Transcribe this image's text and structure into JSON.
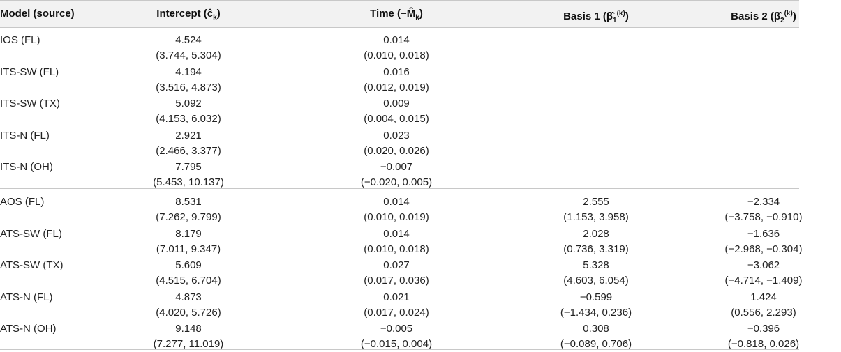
{
  "headers": {
    "model": "Model (source)",
    "intercept": "Intercept (ĉ",
    "intercept_sub": "k",
    "time": "Time (−M̂",
    "time_sub": "k",
    "basis1": "Basis 1 (β̂",
    "basis1_sub": "1",
    "basis1_sup": "(k)",
    "basis2": "Basis 2 (β̂",
    "basis2_sub": "2",
    "basis2_sup": "(k)",
    "close": ")"
  },
  "group1": [
    {
      "model": "IOS (FL)",
      "intercept": "4.524",
      "intercept_ci": "(3.744, 5.304)",
      "time": "0.014",
      "time_ci": "(0.010, 0.018)"
    },
    {
      "model": "ITS-SW (FL)",
      "intercept": "4.194",
      "intercept_ci": "(3.516, 4.873)",
      "time": "0.016",
      "time_ci": "(0.012, 0.019)"
    },
    {
      "model": "ITS-SW (TX)",
      "intercept": "5.092",
      "intercept_ci": "(4.153, 6.032)",
      "time": "0.009",
      "time_ci": "(0.004, 0.015)"
    },
    {
      "model": "ITS-N (FL)",
      "intercept": "2.921",
      "intercept_ci": "(2.466, 3.377)",
      "time": "0.023",
      "time_ci": "(0.020, 0.026)"
    },
    {
      "model": "ITS-N (OH)",
      "intercept": "7.795",
      "intercept_ci": "(5.453, 10.137)",
      "time": "−0.007",
      "time_ci": "(−0.020, 0.005)"
    }
  ],
  "group2": [
    {
      "model": "AOS (FL)",
      "intercept": "8.531",
      "intercept_ci": "(7.262, 9.799)",
      "time": "0.014",
      "time_ci": "(0.010, 0.019)",
      "basis1": "2.555",
      "basis1_ci": "(1.153, 3.958)",
      "basis2": "−2.334",
      "basis2_ci": "(−3.758, −0.910)"
    },
    {
      "model": "ATS-SW (FL)",
      "intercept": "8.179",
      "intercept_ci": "(7.011, 9.347)",
      "time": "0.014",
      "time_ci": "(0.010, 0.018)",
      "basis1": "2.028",
      "basis1_ci": "(0.736, 3.319)",
      "basis2": "−1.636",
      "basis2_ci": "(−2.968, −0.304)"
    },
    {
      "model": "ATS-SW (TX)",
      "intercept": "5.609",
      "intercept_ci": "(4.515, 6.704)",
      "time": "0.027",
      "time_ci": "(0.017, 0.036)",
      "basis1": "5.328",
      "basis1_ci": "(4.603, 6.054)",
      "basis2": "−3.062",
      "basis2_ci": "(−4.714, −1.409)"
    },
    {
      "model": "ATS-N (FL)",
      "intercept": "4.873",
      "intercept_ci": "(4.020, 5.726)",
      "time": "0.021",
      "time_ci": "(0.017, 0.024)",
      "basis1": "−0.599",
      "basis1_ci": "(−1.434, 0.236)",
      "basis2": "1.424",
      "basis2_ci": "(0.556, 2.293)"
    },
    {
      "model": "ATS-N (OH)",
      "intercept": "9.148",
      "intercept_ci": "(7.277, 11.019)",
      "time": "−0.005",
      "time_ci": "(−0.015, 0.004)",
      "basis1": "0.308",
      "basis1_ci": "(−0.089, 0.706)",
      "basis2": "−0.396",
      "basis2_ci": "(−0.818, 0.026)"
    }
  ]
}
